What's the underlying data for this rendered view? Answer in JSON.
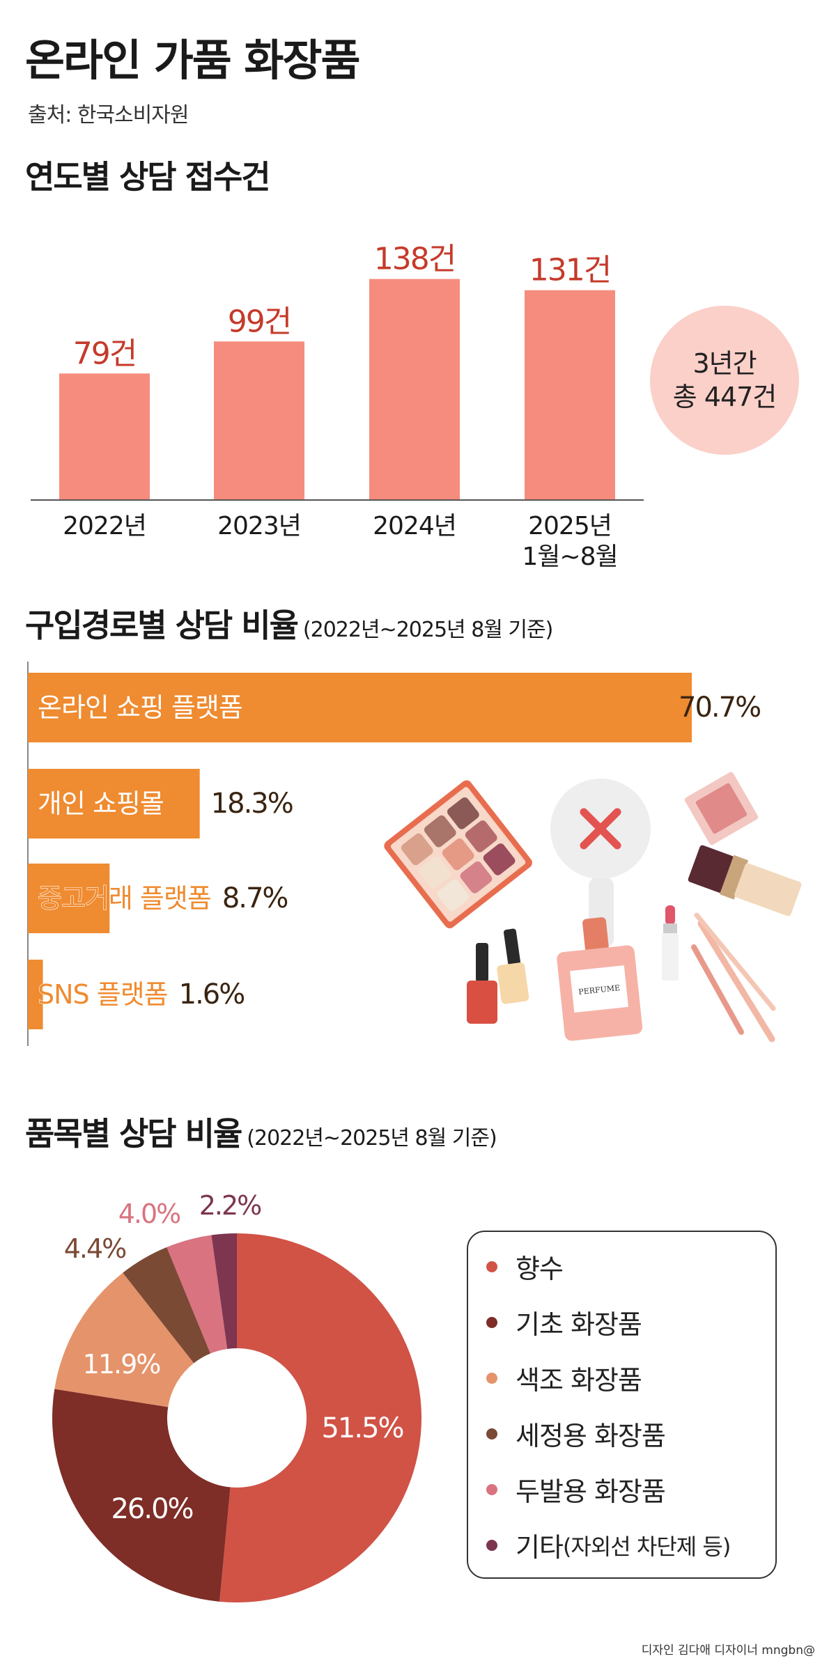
{
  "header": {
    "title": "온라인 가품 화장품",
    "source": "출처: 한국소비자원"
  },
  "yearly": {
    "title": "연도별 상담 접수건",
    "total_line1": "3년간",
    "total_line2": "총 447건",
    "color": "#f68c7d",
    "label_color": "#c53a2a",
    "chart_data": {
      "type": "bar",
      "categories": [
        "2022년",
        "2023년",
        "2024년",
        "2025년 1월~8월"
      ],
      "category_lines": [
        [
          "2022년"
        ],
        [
          "2023년"
        ],
        [
          "2024년"
        ],
        [
          "2025년",
          "1월~8월"
        ]
      ],
      "values": [
        79,
        99,
        138,
        131
      ],
      "value_labels": [
        "79건",
        "99건",
        "138건",
        "131건"
      ]
    }
  },
  "channel": {
    "title": "구입경로별 상담 비율",
    "note": "(2022년~2025년 8월 기준)",
    "color": "#ef8b30",
    "chart_data": {
      "type": "bar",
      "orientation": "horizontal",
      "categories": [
        "온라인 쇼핑 플랫폼",
        "개인 쇼핑몰",
        "중고거래 플랫폼",
        "SNS 플랫폼"
      ],
      "values": [
        70.7,
        18.3,
        8.7,
        1.6
      ],
      "value_labels": [
        "70.7%",
        "18.3%",
        "8.7%",
        "1.6%"
      ]
    }
  },
  "items": {
    "title": "품목별 상담 비율",
    "note": "(2022년~2025년 8월 기준)",
    "legend_note": "(자외선 차단제 등)",
    "chart_data": {
      "type": "pie",
      "donut": true,
      "categories": [
        "향수",
        "기초 화장품",
        "색조 화장품",
        "세정용 화장품",
        "두발용 화장품",
        "기타"
      ],
      "values": [
        51.5,
        26.0,
        11.9,
        4.4,
        4.0,
        2.2
      ],
      "value_labels": [
        "51.5%",
        "26.0%",
        "11.9%",
        "4.4%",
        "4.0%",
        "2.2%"
      ],
      "colors": [
        "#d05346",
        "#7e2d27",
        "#e5936b",
        "#7a4a35",
        "#d97380",
        "#7d3550"
      ]
    }
  },
  "illustration": {
    "perfume_label": "PERFUME"
  },
  "credit": "디자인 김다애 디자이너 mngbn@"
}
